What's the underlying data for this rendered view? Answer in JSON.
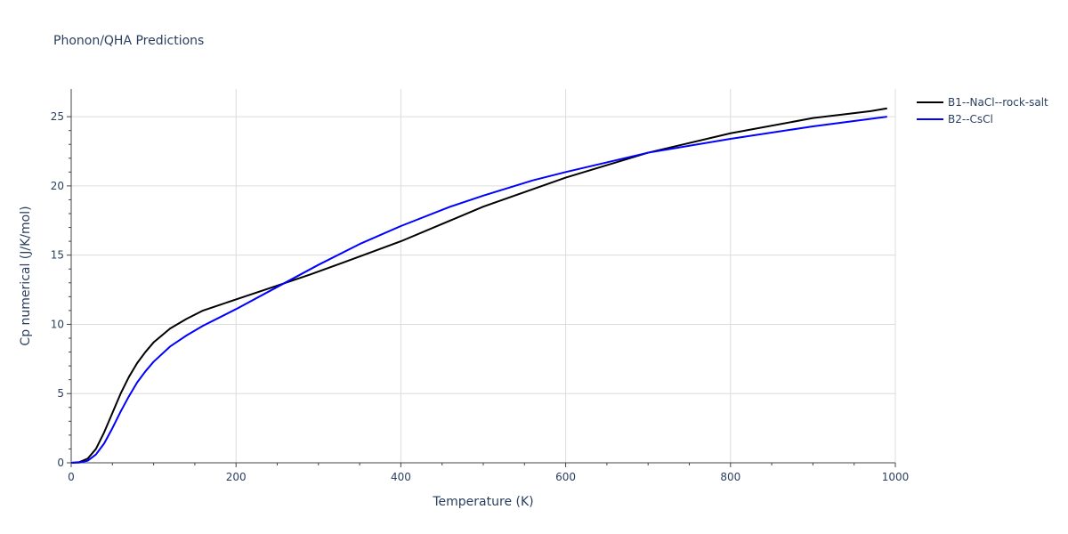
{
  "chart_data": {
    "type": "line",
    "title": "Phonon/QHA Predictions",
    "xlabel": "Temperature (K)",
    "ylabel": "Cp numerical (J/K/mol)",
    "xlim": [
      0,
      1000
    ],
    "ylim": [
      0,
      27
    ],
    "xticks": [
      0,
      200,
      400,
      600,
      800,
      1000
    ],
    "yticks": [
      0,
      5,
      10,
      15,
      20,
      25
    ],
    "grid": true,
    "legend_position": "top-right",
    "series": [
      {
        "name": "B1--NaCl--rock-salt",
        "color": "#000000",
        "x": [
          0,
          10,
          20,
          30,
          40,
          50,
          60,
          70,
          80,
          90,
          100,
          120,
          140,
          160,
          180,
          200,
          250,
          290,
          350,
          400,
          500,
          600,
          700,
          800,
          900,
          970,
          990
        ],
        "y": [
          0,
          0.05,
          0.3,
          1.0,
          2.2,
          3.6,
          5.0,
          6.2,
          7.2,
          8.0,
          8.7,
          9.7,
          10.4,
          11.0,
          11.4,
          11.8,
          12.8,
          13.6,
          14.9,
          16.0,
          18.5,
          20.6,
          22.4,
          23.8,
          24.9,
          25.4,
          25.6
        ]
      },
      {
        "name": "B2--CsCl",
        "color": "#0000ff",
        "x": [
          0,
          10,
          20,
          30,
          40,
          50,
          60,
          70,
          80,
          90,
          100,
          120,
          140,
          160,
          180,
          200,
          250,
          300,
          350,
          400,
          460,
          500,
          560,
          600,
          700,
          800,
          900,
          990
        ],
        "y": [
          0,
          0.02,
          0.15,
          0.6,
          1.4,
          2.5,
          3.7,
          4.8,
          5.8,
          6.6,
          7.3,
          8.4,
          9.2,
          9.9,
          10.5,
          11.1,
          12.7,
          14.3,
          15.8,
          17.1,
          18.5,
          19.3,
          20.4,
          21.0,
          22.4,
          23.4,
          24.3,
          25.0
        ]
      }
    ]
  }
}
